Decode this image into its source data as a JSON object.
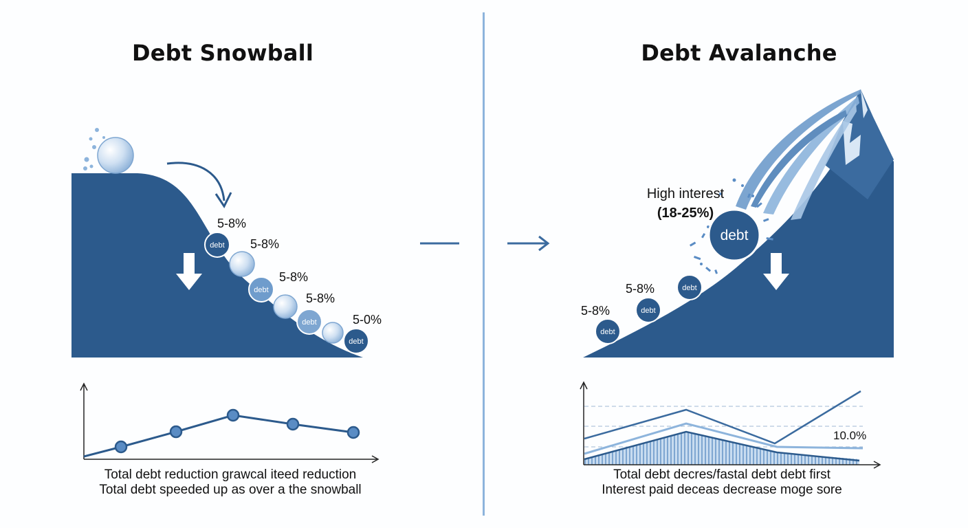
{
  "left": {
    "title": "Debt Snowball",
    "rate_labels": [
      "5-8%",
      "5-8%",
      "5-8%",
      "5-8%",
      "5-0%"
    ],
    "debt_label": "debt",
    "caption_line1": "Total debt reduction grawcal iteed reduction",
    "caption_line2": "Total debt speeded up as over a the snowball"
  },
  "right": {
    "title": "Debt Avalanche",
    "high_interest_label": "High interest",
    "high_interest_range": "(18-25%)",
    "big_debt_label": "debt",
    "rate_labels": [
      "5-8%",
      "5-8%"
    ],
    "debt_label": "debt",
    "chart_value_label": "10.0%",
    "caption_line1": "Total debt decres/fastal debt debt first",
    "caption_line2": "Interest paid deceas decrease moge sore"
  },
  "colors": {
    "navy": "#2c5a8c",
    "mid_blue": "#3b6b9f",
    "light_blue": "#8db4dc",
    "snow": "#d9e7f5"
  },
  "icons": [
    "snowball-icon",
    "curved-arrow-icon",
    "down-arrow-icon",
    "right-arrow-icon",
    "mountain-icon",
    "splash-icon"
  ]
}
